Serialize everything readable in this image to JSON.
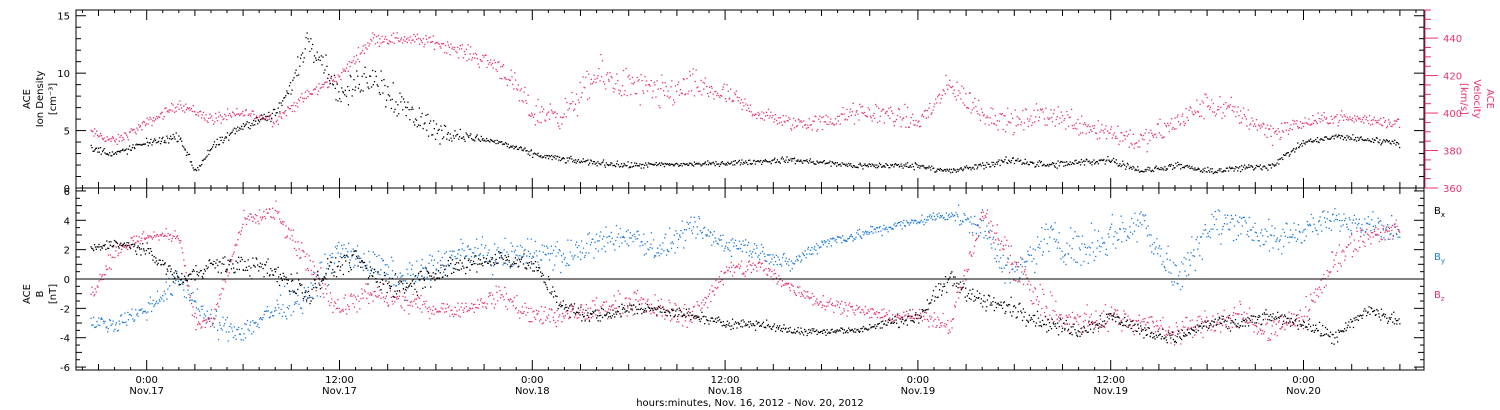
{
  "chart_data": [
    {
      "type": "scatter",
      "panel": "top",
      "ylabel_left": "ACE Ion Density [cm⁻³]",
      "ylabel_right": "ACE Velocity [km/s]",
      "ylabel_left_lines": [
        "ACE",
        "Ion Density",
        "[cm⁻³]"
      ],
      "ylabel_right_lines": [
        "ACE",
        "Velocity",
        "[km/s]"
      ],
      "ylim_left": [
        0,
        15.5
      ],
      "ylim_right": [
        360,
        455
      ],
      "yticks_left": [
        0,
        5,
        10,
        15
      ],
      "yticks_right": [
        360,
        380,
        400,
        420,
        440
      ],
      "colors": {
        "density": "#000000",
        "velocity": "#e8336a"
      },
      "series": [
        {
          "key": "density",
          "axis": "left",
          "x": [
            -3.5,
            -2,
            0,
            2,
            3,
            4,
            6,
            8,
            9,
            10,
            11,
            12,
            13,
            14,
            16,
            18,
            20,
            22,
            24,
            26,
            30,
            36,
            40,
            44,
            48,
            50,
            54,
            56,
            60,
            62,
            64,
            66,
            70,
            72,
            74,
            78
          ],
          "y": [
            3.5,
            3.0,
            4.0,
            4.5,
            1.5,
            3.5,
            5.5,
            6.5,
            9.0,
            13.0,
            11.0,
            8.0,
            9.0,
            10.0,
            7.0,
            5.0,
            4.5,
            4.0,
            3.0,
            2.5,
            2.0,
            2.2,
            2.5,
            2.0,
            2.0,
            1.5,
            2.5,
            2.0,
            2.5,
            1.5,
            2.0,
            1.5,
            2.0,
            4.0,
            4.5,
            4.0
          ],
          "spread": [
            0.5,
            0.5,
            0.5,
            0.5,
            0.4,
            0.6,
            0.6,
            0.9,
            1.4,
            1.4,
            1.6,
            1.4,
            1.9,
            2.3,
            2.5,
            1.5,
            0.5,
            0.4,
            0.4,
            0.4,
            0.4,
            0.3,
            0.4,
            0.4,
            0.4,
            0.4,
            0.5,
            0.5,
            0.5,
            0.4,
            0.4,
            0.4,
            0.5,
            0.4,
            0.4,
            0.5
          ]
        },
        {
          "key": "velocity",
          "axis": "right",
          "x": [
            -3.5,
            -2,
            0,
            2,
            4,
            6,
            8,
            10,
            12,
            13,
            14,
            16,
            18,
            20,
            22,
            24,
            26,
            28,
            30,
            32,
            34,
            36,
            38,
            40,
            42,
            44,
            46,
            48,
            50,
            52,
            54,
            56,
            58,
            60,
            62,
            64,
            66,
            68,
            70,
            72,
            74,
            78
          ],
          "y": [
            390,
            385,
            395,
            405,
            397,
            400,
            397,
            410,
            420,
            430,
            440,
            440,
            438,
            432,
            425,
            400,
            400,
            420,
            415,
            410,
            415,
            410,
            400,
            395,
            395,
            400,
            400,
            395,
            415,
            400,
            395,
            400,
            395,
            390,
            385,
            395,
            405,
            400,
            390,
            395,
            398,
            395
          ],
          "spread": [
            4,
            4,
            4,
            4,
            5,
            5,
            5,
            5,
            4,
            5,
            5,
            5,
            5,
            6,
            9,
            11,
            11,
            14,
            14,
            14,
            12,
            9,
            6,
            6,
            7,
            8,
            9,
            9,
            10,
            10,
            9,
            10,
            10,
            10,
            9,
            10,
            10,
            10,
            9,
            5,
            5,
            5
          ]
        }
      ]
    },
    {
      "type": "scatter",
      "panel": "bottom",
      "ylabel_lines": [
        "ACE",
        "B",
        "[nT]"
      ],
      "ylim": [
        -6.2,
        6.2
      ],
      "yticks": [
        -6,
        -4,
        -2,
        0,
        2,
        4,
        6
      ],
      "zero_line": true,
      "colors": {
        "bx": "#000000",
        "by": "#1c7ad9",
        "bz": "#e8336a"
      },
      "legend": [
        {
          "key": "bx",
          "label": "B",
          "sub": "x"
        },
        {
          "key": "by",
          "label": "B",
          "sub": "y"
        },
        {
          "key": "bz",
          "label": "B",
          "sub": "z"
        }
      ],
      "series": [
        {
          "key": "bx",
          "x": [
            -3.5,
            -2,
            0,
            1,
            2,
            4,
            6,
            8,
            10,
            11,
            12,
            13,
            14,
            16,
            18,
            20,
            22,
            24,
            26,
            28,
            30,
            32,
            34,
            36,
            38,
            40,
            42,
            44,
            46,
            48,
            50,
            52,
            54,
            56,
            58,
            60,
            62,
            64,
            66,
            68,
            70,
            72,
            74,
            76,
            78
          ],
          "y": [
            2.0,
            2.5,
            2.0,
            1.0,
            0.0,
            1.0,
            1.0,
            0.5,
            -1.0,
            0.5,
            1.0,
            1.5,
            0.0,
            -0.5,
            0.5,
            1.0,
            1.5,
            1.0,
            -2.0,
            -2.5,
            -2.0,
            -2.0,
            -2.5,
            -3.0,
            -3.0,
            -3.5,
            -3.5,
            -3.5,
            -3.0,
            -2.5,
            0.0,
            -1.5,
            -2.0,
            -3.0,
            -3.5,
            -2.5,
            -3.5,
            -4.0,
            -3.0,
            -3.0,
            -2.5,
            -3.0,
            -4.0,
            -2.0,
            -3.0
          ],
          "spread": [
            0.5,
            0.5,
            0.6,
            0.6,
            0.8,
            0.8,
            1.0,
            1.2,
            1.4,
            1.2,
            1.0,
            1.0,
            1.2,
            1.2,
            1.2,
            1.0,
            0.8,
            0.8,
            0.8,
            0.8,
            0.6,
            0.6,
            0.6,
            0.5,
            0.5,
            0.4,
            0.4,
            0.4,
            0.5,
            0.8,
            1.0,
            1.0,
            1.0,
            0.8,
            0.8,
            0.8,
            0.6,
            0.6,
            0.7,
            0.7,
            0.6,
            0.6,
            0.8,
            0.8,
            0.7
          ]
        },
        {
          "key": "by",
          "x": [
            -3.5,
            -2,
            0,
            2,
            4,
            6,
            8,
            10,
            12,
            14,
            16,
            18,
            20,
            22,
            24,
            26,
            28,
            30,
            32,
            34,
            36,
            38,
            40,
            42,
            44,
            46,
            48,
            50,
            52,
            54,
            56,
            58,
            60,
            62,
            64,
            66,
            68,
            70,
            72,
            74,
            76,
            78
          ],
          "y": [
            -3.0,
            -3.0,
            -2.0,
            0.0,
            -3.0,
            -3.5,
            -2.0,
            -1.0,
            2.0,
            1.0,
            0.0,
            1.0,
            2.0,
            1.5,
            2.0,
            1.5,
            2.5,
            3.0,
            2.0,
            3.5,
            2.5,
            2.0,
            1.0,
            2.5,
            3.0,
            3.5,
            4.0,
            4.5,
            3.5,
            0.0,
            3.0,
            2.0,
            3.0,
            4.0,
            0.0,
            3.5,
            4.0,
            2.5,
            3.5,
            4.0,
            4.0,
            3.0
          ],
          "spread": [
            0.6,
            0.8,
            1.0,
            1.2,
            1.2,
            1.2,
            1.4,
            1.6,
            1.5,
            1.5,
            1.5,
            1.6,
            1.4,
            1.4,
            1.6,
            1.6,
            1.4,
            1.2,
            1.4,
            1.2,
            1.2,
            1.0,
            0.8,
            0.6,
            0.6,
            0.6,
            0.5,
            0.6,
            1.6,
            2.0,
            1.8,
            2.0,
            2.0,
            1.8,
            2.0,
            2.0,
            1.6,
            1.8,
            1.4,
            1.2,
            1.2,
            1.2
          ]
        },
        {
          "key": "bz",
          "x": [
            -3.5,
            -2,
            0,
            2,
            3,
            4,
            6,
            8,
            10,
            12,
            14,
            16,
            18,
            20,
            22,
            24,
            26,
            28,
            30,
            32,
            34,
            36,
            38,
            40,
            42,
            44,
            46,
            48,
            50,
            52,
            54,
            56,
            58,
            60,
            62,
            64,
            66,
            68,
            70,
            72,
            74,
            76,
            78
          ],
          "y": [
            -1.0,
            2.0,
            3.0,
            3.0,
            -3.0,
            -3.0,
            4.0,
            4.5,
            1.0,
            -2.0,
            -1.0,
            -1.5,
            -2.0,
            -2.0,
            -1.0,
            -2.5,
            -2.5,
            -2.0,
            -1.5,
            -2.0,
            -2.5,
            0.5,
            1.0,
            -0.5,
            -1.5,
            -2.0,
            -2.5,
            -2.5,
            -3.0,
            4.5,
            1.0,
            -2.0,
            -3.0,
            -2.5,
            -3.0,
            -3.5,
            -3.0,
            -2.5,
            -3.5,
            -2.5,
            1.5,
            3.0,
            3.5
          ],
          "spread": [
            0.8,
            1.0,
            0.6,
            0.6,
            0.8,
            0.8,
            0.8,
            1.0,
            1.4,
            1.2,
            1.2,
            1.0,
            0.8,
            0.8,
            1.0,
            1.2,
            1.2,
            1.2,
            1.2,
            1.2,
            1.2,
            1.0,
            1.0,
            0.8,
            0.8,
            0.6,
            0.6,
            0.6,
            1.0,
            1.0,
            2.0,
            2.0,
            1.6,
            1.4,
            1.2,
            1.2,
            1.4,
            1.4,
            1.2,
            1.2,
            1.5,
            1.2,
            1.0
          ]
        }
      ]
    }
  ],
  "x_axis": {
    "ticks": [
      {
        "hour": 0,
        "time": "0:00",
        "date": "Nov.17"
      },
      {
        "hour": 12,
        "time": "12:00",
        "date": "Nov.17"
      },
      {
        "hour": 24,
        "time": "0:00",
        "date": "Nov.18"
      },
      {
        "hour": 36,
        "time": "12:00",
        "date": "Nov.18"
      },
      {
        "hour": 48,
        "time": "0:00",
        "date": "Nov.19"
      },
      {
        "hour": 60,
        "time": "12:00",
        "date": "Nov.19"
      },
      {
        "hour": 72,
        "time": "0:00",
        "date": "Nov.20"
      }
    ],
    "xlim": [
      -4.4,
      79.5
    ],
    "label": "hours:minutes, Nov. 16, 2012 - Nov. 20, 2012"
  }
}
